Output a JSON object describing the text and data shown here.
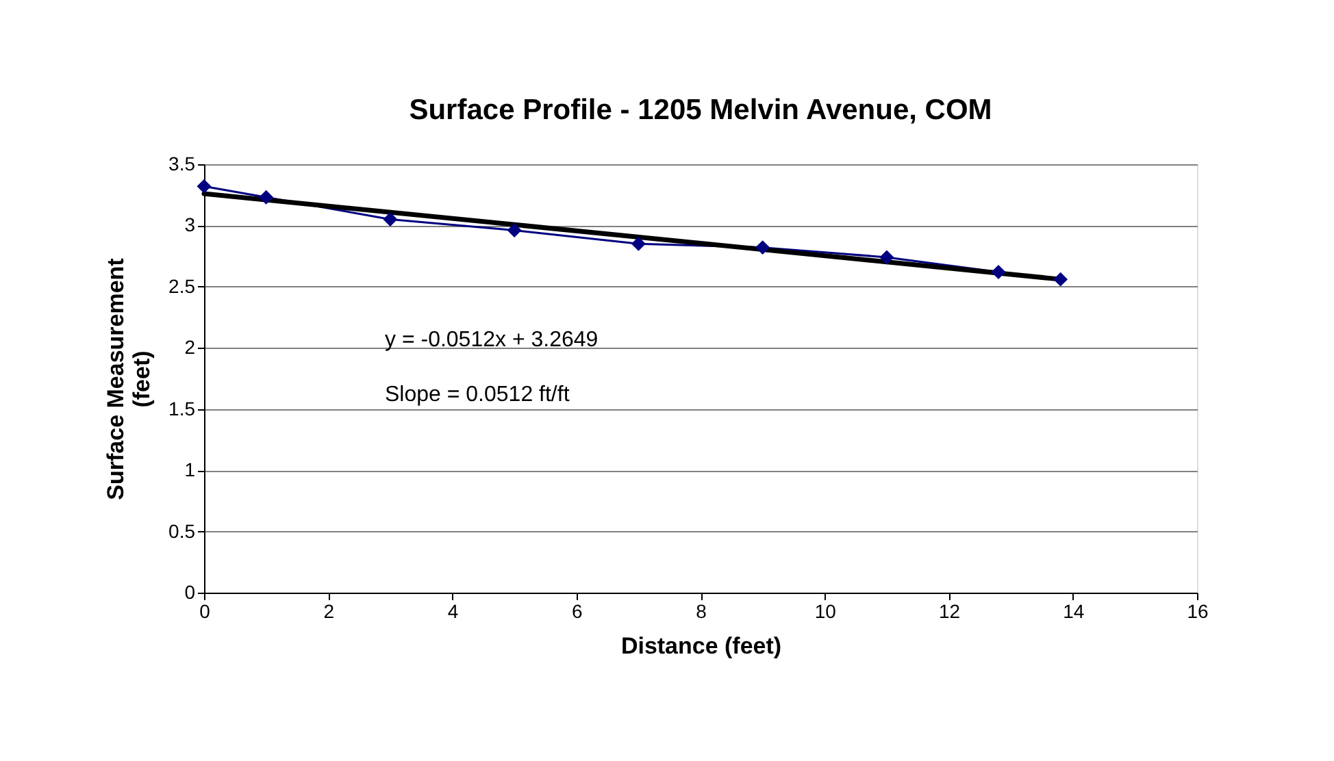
{
  "chart_data": {
    "type": "line",
    "title": "Surface Profile - 1205 Melvin Avenue, COM",
    "xlabel": "Distance (feet)",
    "ylabel": "Surface Measurement (feet)",
    "series": [
      {
        "color": "#000080",
        "x": [
          0,
          1,
          3,
          5,
          7,
          9,
          11,
          12.8,
          13.8
        ],
        "values": [
          3.32,
          3.23,
          3.05,
          2.96,
          2.85,
          2.82,
          2.74,
          2.62,
          2.56
        ],
        "marker": "diamond"
      },
      {
        "color": "#000000",
        "x": [
          0,
          13.8
        ],
        "values": [
          3.26,
          2.56
        ],
        "marker": "none"
      }
    ],
    "annotations": [
      "y = -0.0512x + 3.2649",
      "Slope = 0.0512 ft/ft"
    ],
    "xlim": [
      0,
      16
    ],
    "xticks": [
      0,
      2,
      4,
      6,
      8,
      10,
      12,
      14,
      16
    ],
    "ylim": [
      0,
      3.5
    ],
    "yticks": [
      0,
      0.5,
      1,
      1.5,
      2,
      2.5,
      3,
      3.5
    ],
    "grid": "y",
    "legend": false
  }
}
